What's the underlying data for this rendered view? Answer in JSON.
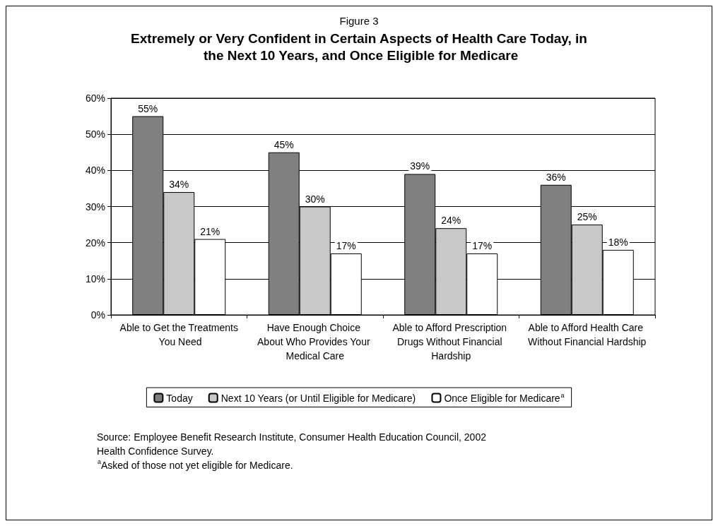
{
  "chart_data": {
    "type": "bar",
    "subtitle": "Figure 3",
    "title": "Extremely or Very Confident in Certain Aspects of Health Care Today, in the Next 10 Years, and Once Eligible for Medicare",
    "categories": [
      "Able to Get the Treatments You Need",
      "Have Enough Choice About Who Provides Your Medical Care",
      "Able to Afford Prescription Drugs Without Financial Hardship",
      "Able to Afford Health Care Without Financial Hardship"
    ],
    "series": [
      {
        "name": "Today",
        "color": "#808080",
        "values": [
          55,
          45,
          39,
          36
        ],
        "value_labels": [
          "55%",
          "45%",
          "39%",
          "36%"
        ]
      },
      {
        "name": "Next 10 Years (or Until Eligible for Medicare)",
        "color": "#c8c8c8",
        "values": [
          34,
          30,
          24,
          25
        ],
        "value_labels": [
          "34%",
          "30%",
          "24%",
          "25%"
        ]
      },
      {
        "name": "Once Eligible for Medicare$^{a}$",
        "color": "#ffffff",
        "values": [
          21,
          17,
          17,
          18
        ],
        "value_labels": [
          "21%",
          "17%",
          "17%",
          "18%"
        ]
      }
    ],
    "ylim": [
      0,
      60
    ],
    "yticks": [
      {
        "value": 0,
        "label": "0%"
      },
      {
        "value": 10,
        "label": "10%"
      },
      {
        "value": 20,
        "label": "20%"
      },
      {
        "value": 30,
        "label": "30%"
      },
      {
        "value": 40,
        "label": "40%"
      },
      {
        "value": 50,
        "label": "50%"
      },
      {
        "value": 60,
        "label": "60%"
      }
    ],
    "grid": "y",
    "legend": "bottom",
    "annotations": [
      "Source: Employee Benefit Research Institute, Consumer Health Education Council, 2002 Health Confidence Survey.",
      "$^{a}$Asked of those not yet eligible for Medicare."
    ]
  }
}
